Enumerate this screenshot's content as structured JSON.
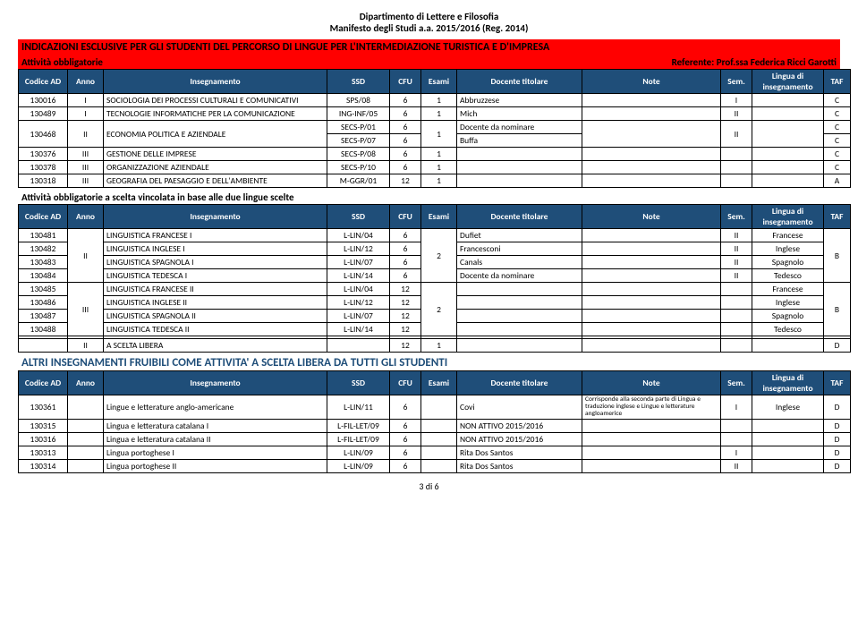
{
  "header": {
    "dept": "Dipartimento di Lettere e Filosofia",
    "manifesto": "Manifesto degli Studi a.a. 2015/2016 (Reg. 2014)"
  },
  "section1": {
    "title": "INDICAZIONI ESCLUSIVE PER GLI STUDENTI DEL PERCORSO DI LINGUE PER L'INTERMEDIAZIONE TURISTICA E D'IMPRESA",
    "left": "Attività obbligatorie",
    "right": "Referente: Prof.ssa Federica Ricci Garotti"
  },
  "cols": {
    "cod": "Codice AD",
    "anno": "Anno",
    "insegn": "Insegnamento",
    "ssd": "SSD",
    "cfu": "CFU",
    "esami": "Esami",
    "doc": "Docente titolare",
    "note": "Note",
    "sem": "Sem.",
    "lingua": "Lingua di insegnamento",
    "taf": "TAF"
  },
  "t1": {
    "r0": {
      "cod": "130016",
      "anno": "I",
      "ins": "SOCIOLOGIA DEI PROCESSI CULTURALI E COMUNICATIVI",
      "ssd": "SPS/08",
      "cfu": "6",
      "es": "1",
      "doc": "Abbruzzese",
      "note": "",
      "sem": "I",
      "ling": "",
      "taf": "C"
    },
    "r1": {
      "cod": "130489",
      "anno": "I",
      "ins": "TECNOLOGIE INFORMATICHE PER LA COMUNICAZIONE",
      "ssd": "ING-INF/05",
      "cfu": "6",
      "es": "1",
      "doc": "Mich",
      "note": "",
      "sem": "II",
      "ling": "",
      "taf": "C"
    },
    "r2a": {
      "cod": "130468",
      "anno": "II",
      "ins": "ECONOMIA POLITICA E AZIENDALE",
      "ssd": "SECS-P/01",
      "cfu": "6",
      "es": "1",
      "doc": "Docente da nominare",
      "note": "",
      "sem": "II",
      "ling": "",
      "taf": "C"
    },
    "r2b": {
      "ssd": "SECS-P/07",
      "cfu": "6",
      "doc": "Buffa",
      "taf": "C"
    },
    "r3": {
      "cod": "130376",
      "anno": "III",
      "ins": "GESTIONE DELLE IMPRESE",
      "ssd": "SECS-P/08",
      "cfu": "6",
      "es": "1",
      "doc": "",
      "note": "",
      "sem": "",
      "ling": "",
      "taf": "C"
    },
    "r4": {
      "cod": "130378",
      "anno": "III",
      "ins": "ORGANIZZAZIONE AZIENDALE",
      "ssd": "SECS-P/10",
      "cfu": "6",
      "es": "1",
      "doc": "",
      "note": "",
      "sem": "",
      "ling": "",
      "taf": "C"
    },
    "r5": {
      "cod": "130318",
      "anno": "III",
      "ins": "GEOGRAFIA DEL PAESAGGIO E DELL'AMBIENTE",
      "ssd": "M-GGR/01",
      "cfu": "12",
      "es": "1",
      "doc": "",
      "note": "",
      "sem": "",
      "ling": "",
      "taf": "A"
    }
  },
  "section2": {
    "title": "Attività obbligatorie a scelta vincolata in base alle due lingue scelte"
  },
  "t2": {
    "r0": {
      "cod": "130481",
      "anno": "II",
      "ins": "LINGUISTICA FRANCESE I",
      "ssd": "L-LIN/04",
      "cfu": "6",
      "es": "2",
      "doc": "Dufiet",
      "note": "",
      "sem": "II",
      "ling": "Francese",
      "taf": "B"
    },
    "r1": {
      "cod": "130482",
      "ins": "LINGUISTICA INGLESE I",
      "ssd": "L-LIN/12",
      "cfu": "6",
      "doc": "Francesconi",
      "note": "",
      "sem": "II",
      "ling": "Inglese"
    },
    "r2": {
      "cod": "130483",
      "ins": "LINGUISTICA SPAGNOLA I",
      "ssd": "L-LIN/07",
      "cfu": "6",
      "doc": "Canals",
      "note": "",
      "sem": "II",
      "ling": "Spagnolo"
    },
    "r3": {
      "cod": "130484",
      "ins": "LINGUISTICA TEDESCA I",
      "ssd": "L-LIN/14",
      "cfu": "6",
      "doc": "Docente da nominare",
      "note": "",
      "sem": "II",
      "ling": "Tedesco"
    },
    "r4": {
      "cod": "130485",
      "anno": "III",
      "ins": "LINGUISTICA FRANCESE II",
      "ssd": "L-LIN/04",
      "cfu": "12",
      "es": "2",
      "doc": "",
      "note": "",
      "sem": "",
      "ling": "Francese",
      "taf": "B"
    },
    "r5": {
      "cod": "130486",
      "ins": "LINGUISTICA INGLESE II",
      "ssd": "L-LIN/12",
      "cfu": "12",
      "doc": "",
      "note": "",
      "sem": "",
      "ling": "Inglese"
    },
    "r6": {
      "cod": "130487",
      "ins": "LINGUISTICA SPAGNOLA II",
      "ssd": "L-LIN/07",
      "cfu": "12",
      "doc": "",
      "note": "",
      "sem": "",
      "ling": "Spagnolo"
    },
    "r7": {
      "cod": "130488",
      "ins": "LINGUISTICA TEDESCA II",
      "ssd": "L-LIN/14",
      "cfu": "12",
      "doc": "",
      "note": "",
      "sem": "",
      "ling": "Tedesco"
    },
    "free": {
      "anno": "II",
      "ins": "A SCELTA LIBERA",
      "cfu": "12",
      "es": "1",
      "taf": "D"
    }
  },
  "section3": {
    "title": "ALTRI INSEGNAMENTI FRUIBILI COME ATTIVITA' A SCELTA LIBERA DA TUTTI GLI STUDENTI"
  },
  "t3": {
    "r0": {
      "cod": "130361",
      "anno": "",
      "ins": "Lingue e letterature anglo-americane",
      "ssd": "L-LIN/11",
      "cfu": "6",
      "es": "",
      "doc": "Covi",
      "note": "Corrisponde alla seconda parte di Lingua e traduzione inglese e Lingue e letterature angloamerice",
      "sem": "I",
      "ling": "Inglese",
      "taf": "D"
    },
    "r1": {
      "cod": "130315",
      "anno": "",
      "ins": "Lingua e letteratura catalana I",
      "ssd": "L-FIL-LET/09",
      "cfu": "6",
      "es": "",
      "doc": "NON ATTIVO 2015/2016",
      "note": "",
      "sem": "",
      "ling": "",
      "taf": "D"
    },
    "r2": {
      "cod": "130316",
      "anno": "",
      "ins": "Lingua e letteratura catalana II",
      "ssd": "L-FIL-LET/09",
      "cfu": "6",
      "es": "",
      "doc": "NON ATTIVO 2015/2016",
      "note": "",
      "sem": "",
      "ling": "",
      "taf": "D"
    },
    "r3": {
      "cod": "130313",
      "anno": "",
      "ins": "Lingua portoghese I",
      "ssd": "L-LIN/09",
      "cfu": "6",
      "es": "",
      "doc": "Rita Dos Santos",
      "note": "",
      "sem": "I",
      "ling": "",
      "taf": "D"
    },
    "r4": {
      "cod": "130314",
      "anno": "",
      "ins": "Lingua portoghese II",
      "ssd": "L-LIN/09",
      "cfu": "6",
      "es": "",
      "doc": "Rita Dos Santos",
      "note": "",
      "sem": "II",
      "ling": "",
      "taf": "D"
    }
  },
  "pagenum": "3 di 6"
}
